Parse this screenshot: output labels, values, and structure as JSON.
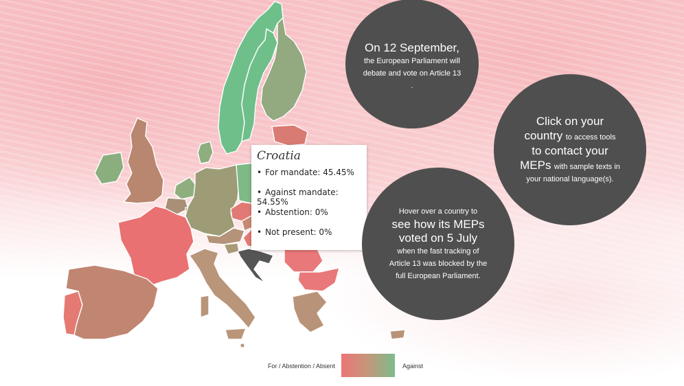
{
  "map": {
    "countries": [
      {
        "id": "norway",
        "color": "#6fbf8a"
      },
      {
        "id": "sweden",
        "color": "#6fbf8a"
      },
      {
        "id": "finland",
        "color": "#93a97f"
      },
      {
        "id": "estonia",
        "color": "#d97b72"
      },
      {
        "id": "latvia",
        "color": "#d98670"
      },
      {
        "id": "lithuania",
        "color": "#c99778"
      },
      {
        "id": "ireland",
        "color": "#8aae7e"
      },
      {
        "id": "united-kingdom",
        "color": "#b9866f"
      },
      {
        "id": "denmark",
        "color": "#8fae7f"
      },
      {
        "id": "netherlands",
        "color": "#8fae7f"
      },
      {
        "id": "belgium",
        "color": "#a88f76"
      },
      {
        "id": "germany",
        "color": "#9d9c77"
      },
      {
        "id": "poland",
        "color": "#7eb986"
      },
      {
        "id": "czechia",
        "color": "#e17a74"
      },
      {
        "id": "slovakia",
        "color": "#c68a72"
      },
      {
        "id": "austria",
        "color": "#b59378"
      },
      {
        "id": "hungary",
        "color": "#e17a74"
      },
      {
        "id": "slovenia",
        "color": "#a99a78"
      },
      {
        "id": "croatia",
        "color": "#555555"
      },
      {
        "id": "romania",
        "color": "#e8787a"
      },
      {
        "id": "bulgaria",
        "color": "#e8787a"
      },
      {
        "id": "france",
        "color": "#ea7171"
      },
      {
        "id": "spain",
        "color": "#c18672"
      },
      {
        "id": "portugal",
        "color": "#e57a73"
      },
      {
        "id": "italy",
        "color": "#b9957a"
      },
      {
        "id": "greece",
        "color": "#b99379"
      },
      {
        "id": "cyprus",
        "color": "#b99379"
      },
      {
        "id": "malta",
        "color": "#b9957a"
      },
      {
        "id": "luxembourg",
        "color": "#a88f76"
      }
    ]
  },
  "tooltip": {
    "country": "Croatia",
    "items": [
      "For mandate: 45.45%",
      "Against mandate: 54.55%",
      "Abstention: 0%",
      "Not present: 0%"
    ]
  },
  "circles": {
    "debate": {
      "headline": "On 12 September,",
      "line1": "the European Parliament will",
      "line2": "debate and vote on Article 13",
      "line3": "."
    },
    "contact": {
      "part1": "Click on your",
      "part2": "country",
      "part3": "to access tools",
      "part4": "to contact your",
      "part5": "MEPs",
      "part6": "with sample texts in",
      "part7": "your national language(s)."
    },
    "hover": {
      "part1": "Hover over a country to",
      "part2": "see how its MEPs",
      "part3": "voted on 5 July",
      "part4": "when the fast tracking of",
      "part5": "Article 13 was blocked by the",
      "part6": "full European Parliament."
    }
  },
  "legend": {
    "left_label": "For / Abstention / Absent",
    "right_label": "Against",
    "colors": {
      "for": "#ec7577",
      "against": "#7dbc8c"
    }
  }
}
